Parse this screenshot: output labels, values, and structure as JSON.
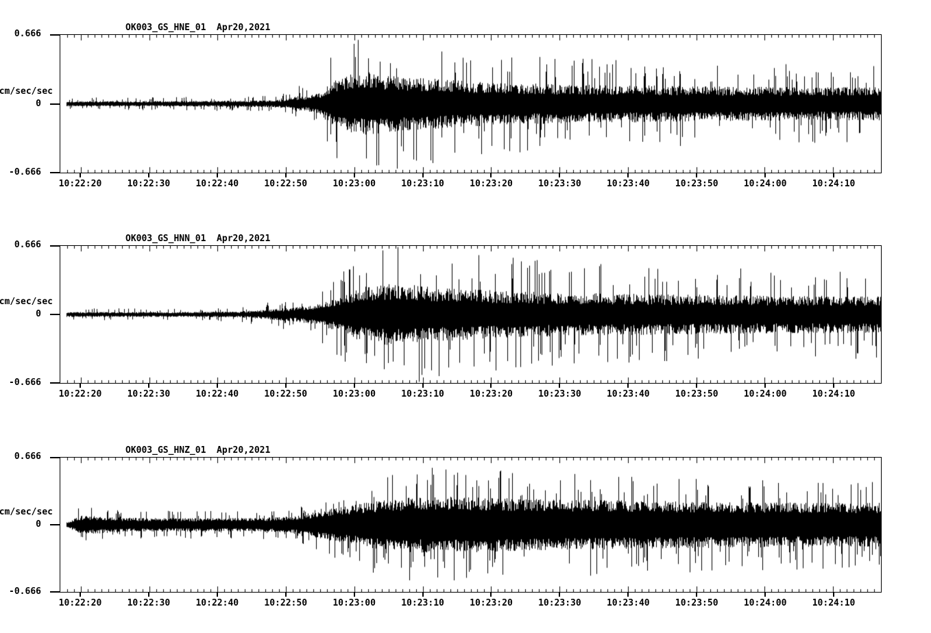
{
  "page": {
    "background_color": "#ffffff",
    "trace_color": "#000000"
  },
  "chart_data": [
    {
      "type": "line",
      "subtype": "seismogram",
      "title": "OK003_GS_HNE_01  Apr20,2021",
      "station_id": "OK003_GS_HNE_01",
      "station": "OK003",
      "network": "GS",
      "channel": "HNE",
      "location": "01",
      "date": "Apr20,2021",
      "xlabel": "",
      "ylabel": "cm/sec/sec",
      "ylim": [
        -0.666,
        0.666
      ],
      "ytick_labels": [
        "0.666",
        "0",
        "-0.666"
      ],
      "x_tick_labels": [
        "10:22:20",
        "10:22:30",
        "10:22:40",
        "10:22:50",
        "10:23:00",
        "10:23:10",
        "10:23:20",
        "10:23:30",
        "10:23:40",
        "10:23:50",
        "10:24:00",
        "10:24:10"
      ],
      "x_range": [
        "10:22:17",
        "10:24:17"
      ],
      "x_first_tick_offset_sec": 3,
      "x_major_interval_sec": 10,
      "x_minor_interval_sec": 1,
      "x_duration_sec": 120,
      "grid": false,
      "legend": false,
      "series_color": "#000000",
      "envelope_sec_amp": [
        [
          1,
          0.03
        ],
        [
          20,
          0.033
        ],
        [
          30,
          0.038
        ],
        [
          33,
          0.05
        ],
        [
          34.5,
          0.09
        ],
        [
          36,
          0.08
        ],
        [
          38,
          0.13
        ],
        [
          39.5,
          0.25
        ],
        [
          42,
          0.33
        ],
        [
          45,
          0.36
        ],
        [
          48,
          0.33
        ],
        [
          52,
          0.3
        ],
        [
          58,
          0.27
        ],
        [
          65,
          0.24
        ],
        [
          75,
          0.22
        ],
        [
          85,
          0.21
        ],
        [
          95,
          0.2
        ],
        [
          108,
          0.19
        ],
        [
          120,
          0.19
        ]
      ],
      "render": {
        "core_min": 0.4,
        "core_rand": 0.45,
        "spike_prob": 0.1,
        "spike_min": 1.05,
        "spike_rand": 0.95,
        "seed": 101,
        "trace_start_sec": 1.0,
        "clip_amp": 0.645
      }
    },
    {
      "type": "line",
      "subtype": "seismogram",
      "title": "OK003_GS_HNN_01  Apr20,2021",
      "station_id": "OK003_GS_HNN_01",
      "station": "OK003",
      "network": "GS",
      "channel": "HNN",
      "location": "01",
      "date": "Apr20,2021",
      "xlabel": "",
      "ylabel": "cm/sec/sec",
      "ylim": [
        -0.666,
        0.666
      ],
      "ytick_labels": [
        "0.666",
        "0",
        "-0.666"
      ],
      "x_tick_labels": [
        "10:22:20",
        "10:22:30",
        "10:22:40",
        "10:22:50",
        "10:23:00",
        "10:23:10",
        "10:23:20",
        "10:23:30",
        "10:23:40",
        "10:23:50",
        "10:24:00",
        "10:24:10"
      ],
      "x_range": [
        "10:22:17",
        "10:24:17"
      ],
      "x_first_tick_offset_sec": 3,
      "x_major_interval_sec": 10,
      "x_minor_interval_sec": 1,
      "x_duration_sec": 120,
      "grid": false,
      "legend": false,
      "series_color": "#000000",
      "envelope_sec_amp": [
        [
          1,
          0.028
        ],
        [
          20,
          0.03
        ],
        [
          26,
          0.035
        ],
        [
          30,
          0.055
        ],
        [
          34,
          0.08
        ],
        [
          37,
          0.11
        ],
        [
          40,
          0.18
        ],
        [
          43,
          0.28
        ],
        [
          46,
          0.35
        ],
        [
          50,
          0.35
        ],
        [
          55,
          0.31
        ],
        [
          62,
          0.28
        ],
        [
          70,
          0.26
        ],
        [
          80,
          0.24
        ],
        [
          90,
          0.23
        ],
        [
          100,
          0.22
        ],
        [
          110,
          0.215
        ],
        [
          120,
          0.215
        ]
      ],
      "render": {
        "core_min": 0.4,
        "core_rand": 0.45,
        "spike_prob": 0.1,
        "spike_min": 1.1,
        "spike_rand": 0.95,
        "seed": 202,
        "trace_start_sec": 1.0,
        "clip_amp": 0.655
      }
    },
    {
      "type": "line",
      "subtype": "seismogram",
      "title": "OK003_GS_HNZ_01  Apr20,2021",
      "station_id": "OK003_GS_HNZ_01",
      "station": "OK003",
      "network": "GS",
      "channel": "HNZ",
      "location": "01",
      "date": "Apr20,2021",
      "xlabel": "",
      "ylabel": "cm/sec/sec",
      "ylim": [
        -0.666,
        0.666
      ],
      "ytick_labels": [
        "0.666",
        "0",
        "-0.666"
      ],
      "x_tick_labels": [
        "10:22:20",
        "10:22:30",
        "10:22:40",
        "10:22:50",
        "10:23:00",
        "10:23:10",
        "10:23:20",
        "10:23:30",
        "10:23:40",
        "10:23:50",
        "10:24:00",
        "10:24:10"
      ],
      "x_range": [
        "10:22:17",
        "10:24:17"
      ],
      "x_first_tick_offset_sec": 3,
      "x_major_interval_sec": 10,
      "x_minor_interval_sec": 1,
      "x_duration_sec": 120,
      "grid": false,
      "legend": false,
      "series_color": "#000000",
      "envelope_sec_amp": [
        [
          1,
          0.025
        ],
        [
          2,
          0.06
        ],
        [
          3,
          0.095
        ],
        [
          6,
          0.09
        ],
        [
          9,
          0.073
        ],
        [
          20,
          0.07
        ],
        [
          28,
          0.072
        ],
        [
          32,
          0.08
        ],
        [
          35,
          0.1
        ],
        [
          37,
          0.13
        ],
        [
          39,
          0.16
        ],
        [
          42,
          0.2
        ],
        [
          46,
          0.25
        ],
        [
          50,
          0.28
        ],
        [
          55,
          0.3
        ],
        [
          60,
          0.29
        ],
        [
          68,
          0.27
        ],
        [
          78,
          0.26
        ],
        [
          88,
          0.25
        ],
        [
          98,
          0.24
        ],
        [
          110,
          0.23
        ],
        [
          120,
          0.23
        ]
      ],
      "render": {
        "core_min": 0.5,
        "core_rand": 0.45,
        "spike_prob": 0.12,
        "spike_min": 1.05,
        "spike_rand": 0.9,
        "seed": 303,
        "trace_start_sec": 1.0,
        "clip_amp": 0.645
      }
    }
  ]
}
